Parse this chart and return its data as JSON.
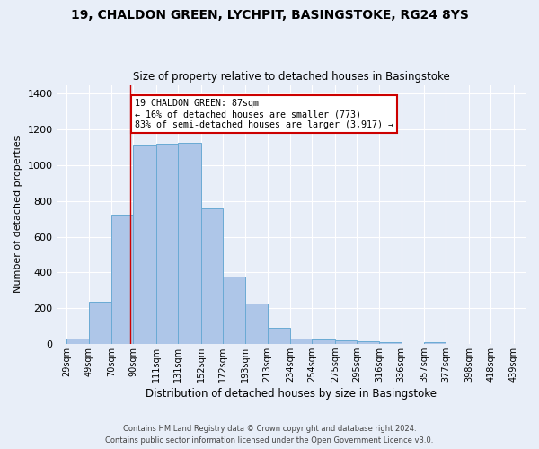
{
  "title": "19, CHALDON GREEN, LYCHPIT, BASINGSTOKE, RG24 8YS",
  "subtitle": "Size of property relative to detached houses in Basingstoke",
  "xlabel": "Distribution of detached houses by size in Basingstoke",
  "ylabel": "Number of detached properties",
  "footnote1": "Contains HM Land Registry data © Crown copyright and database right 2024.",
  "footnote2": "Contains public sector information licensed under the Open Government Licence v3.0.",
  "bin_edges": [
    29,
    49,
    70,
    90,
    111,
    131,
    152,
    172,
    193,
    213,
    234,
    254,
    275,
    295,
    316,
    336,
    357,
    377,
    398,
    418,
    439
  ],
  "bar_heights": [
    30,
    235,
    725,
    1110,
    1120,
    1125,
    760,
    375,
    225,
    90,
    30,
    25,
    20,
    15,
    10,
    0,
    10,
    0,
    0,
    0
  ],
  "bar_color": "#aec6e8",
  "bar_edge_color": "#6aaad4",
  "vline_x": 87,
  "vline_color": "#cc0000",
  "annotation_text": "19 CHALDON GREEN: 87sqm\n← 16% of detached houses are smaller (773)\n83% of semi-detached houses are larger (3,917) →",
  "annotation_box_color": "#ffffff",
  "annotation_box_edge": "#cc0000",
  "ylim": [
    0,
    1450
  ],
  "xlim": [
    20,
    450
  ],
  "bg_color": "#e8eef8",
  "plot_bg_color": "#e8eef8",
  "grid_color": "#ffffff",
  "tick_labels": [
    "29sqm",
    "49sqm",
    "70sqm",
    "90sqm",
    "111sqm",
    "131sqm",
    "152sqm",
    "172sqm",
    "193sqm",
    "213sqm",
    "234sqm",
    "254sqm",
    "275sqm",
    "295sqm",
    "316sqm",
    "336sqm",
    "357sqm",
    "377sqm",
    "398sqm",
    "418sqm",
    "439sqm"
  ],
  "tick_positions": [
    29,
    49,
    70,
    90,
    111,
    131,
    152,
    172,
    193,
    213,
    234,
    254,
    275,
    295,
    316,
    336,
    357,
    377,
    398,
    418,
    439
  ],
  "yticks": [
    0,
    200,
    400,
    600,
    800,
    1000,
    1200,
    1400
  ]
}
